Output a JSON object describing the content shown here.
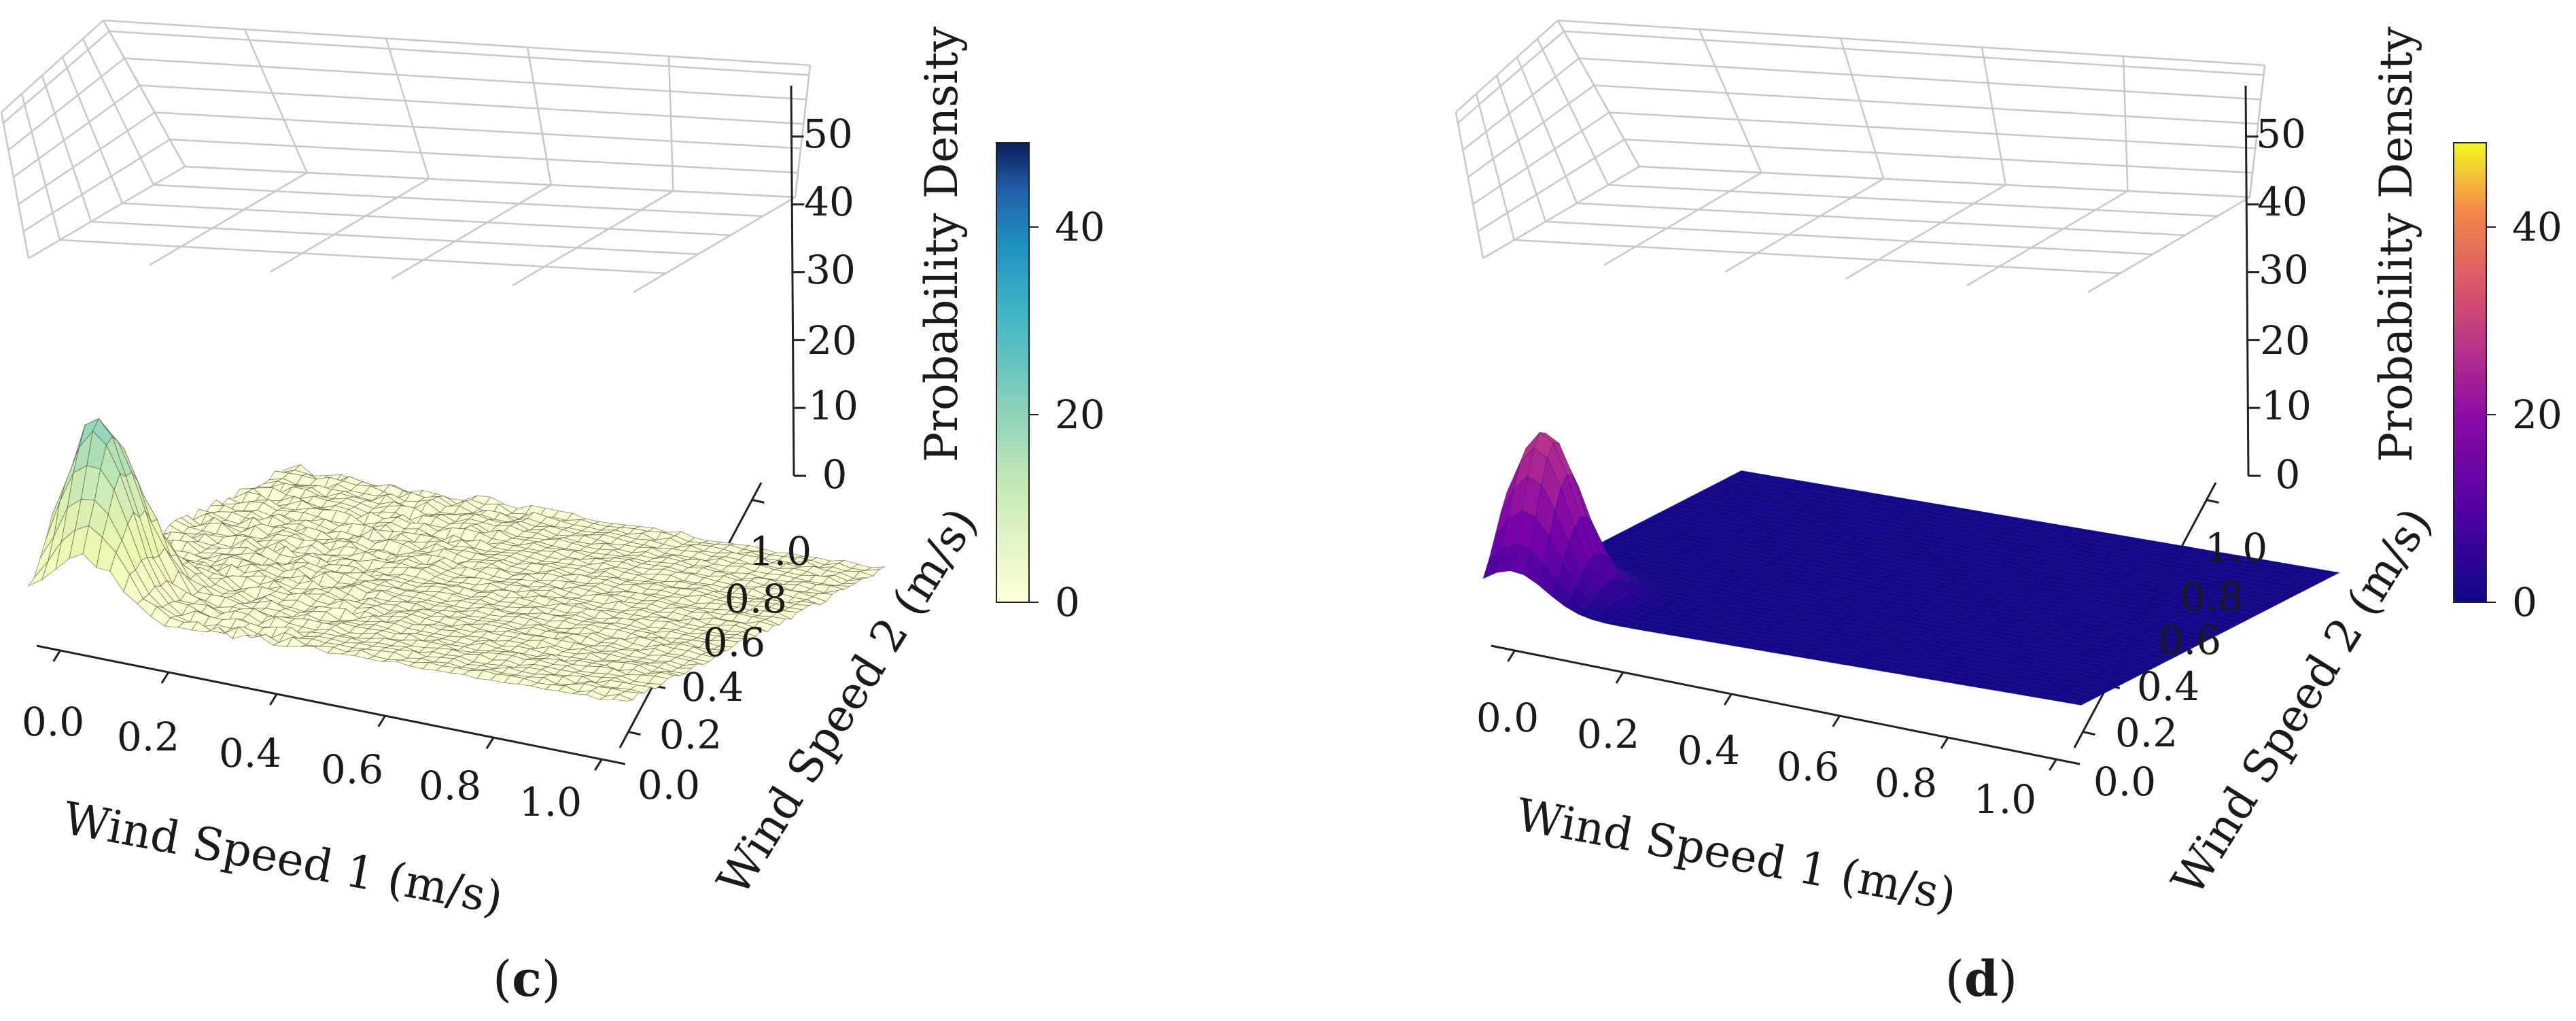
{
  "figure": {
    "panels": [
      {
        "id": "c",
        "caption_open": "(",
        "caption_letter": "c",
        "caption_close": ")",
        "colorbar": {
          "colormap": "YlGnBu",
          "ticks": [
            "0",
            "20",
            "40"
          ],
          "range": [
            0,
            49
          ]
        }
      },
      {
        "id": "d",
        "caption_open": "(",
        "caption_letter": "d",
        "caption_close": ")",
        "colorbar": {
          "colormap": "plasma",
          "ticks": [
            "0",
            "20",
            "40"
          ],
          "range": [
            0,
            49
          ]
        }
      }
    ]
  },
  "chart_data": [
    {
      "type": "surface3d",
      "panel": "(c)",
      "xlabel": "Wind Speed 1 (m/s)",
      "ylabel": "Wind Speed 2 (m/s)",
      "zlabel": "Probability Density",
      "xticks": [
        "0.0",
        "0.2",
        "0.4",
        "0.6",
        "0.8",
        "1.0"
      ],
      "yticks": [
        "0.0",
        "0.2",
        "0.4",
        "0.6",
        "0.8",
        "1.0"
      ],
      "zticks": [
        "0",
        "10",
        "20",
        "30",
        "40",
        "50"
      ],
      "xlim": [
        0,
        1
      ],
      "ylim": [
        0,
        1
      ],
      "zlim": [
        0,
        50
      ],
      "grid": true,
      "surface": "empirical joint density, wireframe mesh, noisy, peak near (0.05, 0.12)",
      "peaks": [
        {
          "x": 0.05,
          "y": 0.12,
          "z": 15
        },
        {
          "x": 0.11,
          "y": 0.06,
          "z": 7.5
        },
        {
          "x": 0.11,
          "y": 0.18,
          "z": 6
        }
      ],
      "baseline": 0.6,
      "noise": 0.6,
      "colorbar_label": "",
      "colorbar_ticks": [
        0,
        20,
        40
      ],
      "colorbar_range": [
        0,
        49
      ]
    },
    {
      "type": "surface3d",
      "panel": "(d)",
      "xlabel": "Wind Speed 1 (m/s)",
      "ylabel": "Wind Speed 2 (m/s)",
      "zlabel": "Probability Density",
      "xticks": [
        "0.0",
        "0.2",
        "0.4",
        "0.6",
        "0.8",
        "1.0"
      ],
      "yticks": [
        "0.0",
        "0.2",
        "0.4",
        "0.6",
        "0.8",
        "1.0"
      ],
      "zticks": [
        "0",
        "10",
        "20",
        "30",
        "40",
        "50"
      ],
      "xlim": [
        0,
        1
      ],
      "ylim": [
        0,
        1
      ],
      "zlim": [
        0,
        50
      ],
      "grid": true,
      "surface": "smooth fitted joint density, single peak near (0.05, 0.12)",
      "peaks": [
        {
          "x": 0.05,
          "y": 0.12,
          "z": 18
        }
      ],
      "baseline": 0.2,
      "noise": 0,
      "colorbar_label": "",
      "colorbar_ticks": [
        0,
        20,
        40
      ],
      "colorbar_range": [
        0,
        49
      ]
    }
  ]
}
